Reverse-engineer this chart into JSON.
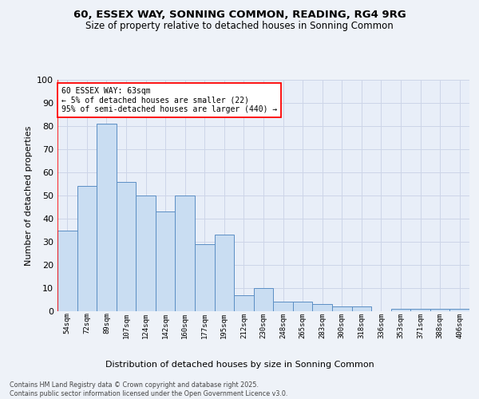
{
  "title1": "60, ESSEX WAY, SONNING COMMON, READING, RG4 9RG",
  "title2": "Size of property relative to detached houses in Sonning Common",
  "xlabel": "Distribution of detached houses by size in Sonning Common",
  "ylabel": "Number of detached properties",
  "categories": [
    "54sqm",
    "72sqm",
    "89sqm",
    "107sqm",
    "124sqm",
    "142sqm",
    "160sqm",
    "177sqm",
    "195sqm",
    "212sqm",
    "230sqm",
    "248sqm",
    "265sqm",
    "283sqm",
    "300sqm",
    "318sqm",
    "336sqm",
    "353sqm",
    "371sqm",
    "388sqm",
    "406sqm"
  ],
  "values": [
    35,
    54,
    81,
    56,
    50,
    43,
    50,
    29,
    33,
    7,
    10,
    4,
    4,
    3,
    2,
    2,
    0,
    1,
    1,
    1,
    1
  ],
  "bar_color": "#c9ddf2",
  "bar_edge_color": "#5b8ec4",
  "annotation_title": "60 ESSEX WAY: 63sqm",
  "annotation_line1": "← 5% of detached houses are smaller (22)",
  "annotation_line2": "95% of semi-detached houses are larger (440) →",
  "ylim": [
    0,
    100
  ],
  "yticks": [
    0,
    10,
    20,
    30,
    40,
    50,
    60,
    70,
    80,
    90,
    100
  ],
  "grid_color": "#cdd5e8",
  "background_color": "#e8eef8",
  "fig_background": "#eef2f8",
  "footer1": "Contains HM Land Registry data © Crown copyright and database right 2025.",
  "footer2": "Contains public sector information licensed under the Open Government Licence v3.0."
}
